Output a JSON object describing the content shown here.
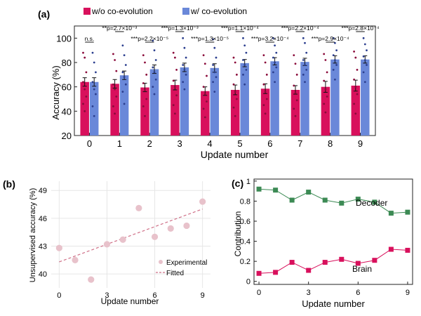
{
  "colors": {
    "without": "#d8105c",
    "with": "#6a88d9",
    "decoder": "#3c8a54",
    "brain": "#d8105c",
    "experimental": "#e8c2cb",
    "fitted": "#cf6f87",
    "axis": "#222222"
  },
  "chart_data": [
    {
      "type": "bar",
      "panel_label": "(a)",
      "xlabel": "Update number",
      "ylabel": "Accuracy (%)",
      "categories": [
        "0",
        "1",
        "2",
        "3",
        "4",
        "5",
        "6",
        "7",
        "8",
        "9"
      ],
      "ylim": [
        20,
        110
      ],
      "yticks": [
        "20",
        "40",
        "60",
        "80",
        "100"
      ],
      "legend": {
        "position": "top-left",
        "entries": [
          "w/o co-evolution",
          "w/  co-evolution"
        ]
      },
      "series": [
        {
          "name": "w/o co-evolution",
          "values": [
            64,
            62.5,
            59.5,
            61.5,
            56.5,
            57.5,
            58.5,
            57.5,
            60,
            61
          ],
          "errors": [
            3.5,
            3.5,
            3.5,
            4,
            3.5,
            4,
            4,
            3.5,
            4.5,
            4.5
          ]
        },
        {
          "name": "w/  co-evolution",
          "values": [
            64,
            69.5,
            74.5,
            76,
            75.5,
            79.5,
            81,
            80.5,
            82.5,
            82.5
          ],
          "errors": [
            3.5,
            3.5,
            3.5,
            3.5,
            3.5,
            3,
            3,
            3,
            3,
            3
          ]
        }
      ],
      "scatter_points": {
        "without": [
          [
            88,
            84,
            72,
            64,
            58,
            52,
            46,
            40
          ],
          [
            87,
            82,
            73,
            62,
            58,
            52,
            44,
            38
          ],
          [
            86,
            80,
            70,
            63,
            57,
            50,
            44,
            36
          ],
          [
            88,
            84,
            74,
            65,
            60,
            53,
            45,
            38
          ],
          [
            86,
            79,
            69,
            60,
            54,
            48,
            42,
            35
          ],
          [
            84,
            80,
            70,
            62,
            56,
            50,
            43,
            36
          ],
          [
            86,
            80,
            70,
            62,
            56,
            50,
            45,
            38
          ],
          [
            86,
            79,
            70,
            61,
            55,
            49,
            42,
            36
          ],
          [
            87,
            82,
            72,
            65,
            58,
            52,
            46,
            39
          ],
          [
            89,
            84,
            74,
            66,
            60,
            54,
            46,
            38
          ]
        ],
        "with": [
          [
            88,
            80,
            72,
            64,
            58,
            54,
            44,
            36
          ],
          [
            94,
            86,
            78,
            72,
            68,
            62,
            56,
            46
          ],
          [
            98,
            90,
            82,
            76,
            72,
            66,
            60,
            54
          ],
          [
            100,
            92,
            84,
            78,
            74,
            70,
            64,
            58
          ],
          [
            99,
            92,
            84,
            78,
            72,
            68,
            64,
            56
          ],
          [
            100,
            94,
            88,
            82,
            78,
            74,
            70,
            62
          ],
          [
            100,
            94,
            88,
            84,
            80,
            76,
            72,
            64
          ],
          [
            100,
            96,
            88,
            82,
            78,
            74,
            70,
            64
          ],
          [
            100,
            96,
            90,
            86,
            82,
            78,
            74,
            66
          ],
          [
            100,
            95,
            90,
            85,
            82,
            78,
            72,
            64
          ]
        ]
      },
      "annotations": [
        {
          "text": "n.s.",
          "x": 0
        },
        {
          "text": "**p=2.7×10⁻³",
          "x": 1
        },
        {
          "text": "***p=2.2×10⁻⁵",
          "x": 2
        },
        {
          "text": "***p=1.3×10⁻³",
          "x": 3
        },
        {
          "text": "***p=1.3×10⁻⁵",
          "x": 4
        },
        {
          "text": "***p=1.1×10⁻⁴",
          "x": 5
        },
        {
          "text": "***p=3.2×10⁻⁴",
          "x": 6
        },
        {
          "text": "***p=2.2×10⁻⁴",
          "x": 7
        },
        {
          "text": "***p=2.9×10⁻⁴",
          "x": 8
        },
        {
          "text": "***p=2.8×10⁻⁴",
          "x": 9
        }
      ]
    },
    {
      "type": "scatter",
      "panel_label": "(b)",
      "xlabel": "Update number",
      "ylabel": "Unsupervised accuracy (%)",
      "xlim": [
        -0.5,
        9.5
      ],
      "ylim": [
        38.5,
        50
      ],
      "xticks": [
        "0",
        "3",
        "6",
        "9"
      ],
      "yticks": [
        "40",
        "43",
        "46",
        "49"
      ],
      "legend": {
        "position": "bottom-right",
        "entries": [
          "Experimental",
          "Fitted"
        ]
      },
      "series": [
        {
          "name": "Experimental",
          "x": [
            0,
            1,
            2,
            3,
            4,
            5,
            6,
            7,
            8,
            9
          ],
          "y": [
            42.8,
            41.5,
            39.4,
            43.2,
            43.7,
            47.1,
            44,
            44.9,
            45.2,
            47.8
          ]
        },
        {
          "name": "Fitted",
          "x": [
            0,
            9
          ],
          "y": [
            41.3,
            47
          ]
        }
      ]
    },
    {
      "type": "line",
      "panel_label": "(c)",
      "xlabel": "Update number",
      "ylabel": "Contribution",
      "xlim": [
        -0.3,
        9.3
      ],
      "ylim": [
        -0.03,
        1.02
      ],
      "xticks": [
        "0",
        "3",
        "6",
        "9"
      ],
      "yticks": [
        "0",
        "0.2",
        "0.4",
        "0.6",
        "0.8",
        "1"
      ],
      "series": [
        {
          "name": "Decoder",
          "x": [
            0,
            1,
            2,
            3,
            4,
            5,
            6,
            7,
            8,
            9
          ],
          "y": [
            0.92,
            0.91,
            0.81,
            0.89,
            0.81,
            0.78,
            0.82,
            0.79,
            0.68,
            0.69
          ]
        },
        {
          "name": "Brain",
          "x": [
            0,
            1,
            2,
            3,
            4,
            5,
            6,
            7,
            8,
            9
          ],
          "y": [
            0.08,
            0.09,
            0.19,
            0.11,
            0.19,
            0.22,
            0.18,
            0.21,
            0.32,
            0.31
          ]
        }
      ]
    }
  ]
}
